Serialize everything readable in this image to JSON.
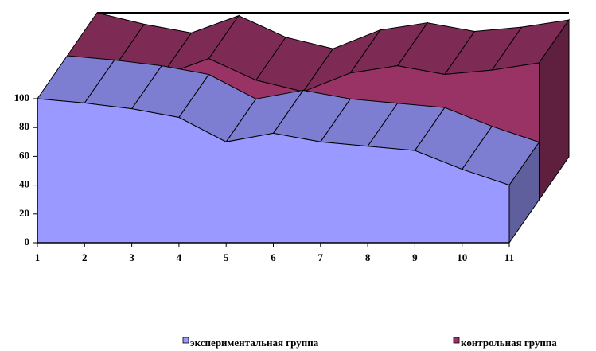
{
  "chart_data": {
    "type": "area3d",
    "categories": [
      "1",
      "2",
      "3",
      "4",
      "5",
      "6",
      "7",
      "8",
      "9",
      "10",
      "11"
    ],
    "series": [
      {
        "name": "экспериментальная группа",
        "color": "#9999ff",
        "values": [
          100,
          97,
          93,
          87,
          70,
          76,
          70,
          67,
          64,
          51,
          40
        ]
      },
      {
        "name": "контрольная группа",
        "color": "#993366",
        "values": [
          100,
          92,
          86,
          98,
          83,
          75,
          88,
          93,
          87,
          90,
          95
        ]
      }
    ],
    "ylim": [
      0,
      100
    ],
    "yticks": [
      0,
      20,
      40,
      60,
      80,
      100
    ]
  }
}
